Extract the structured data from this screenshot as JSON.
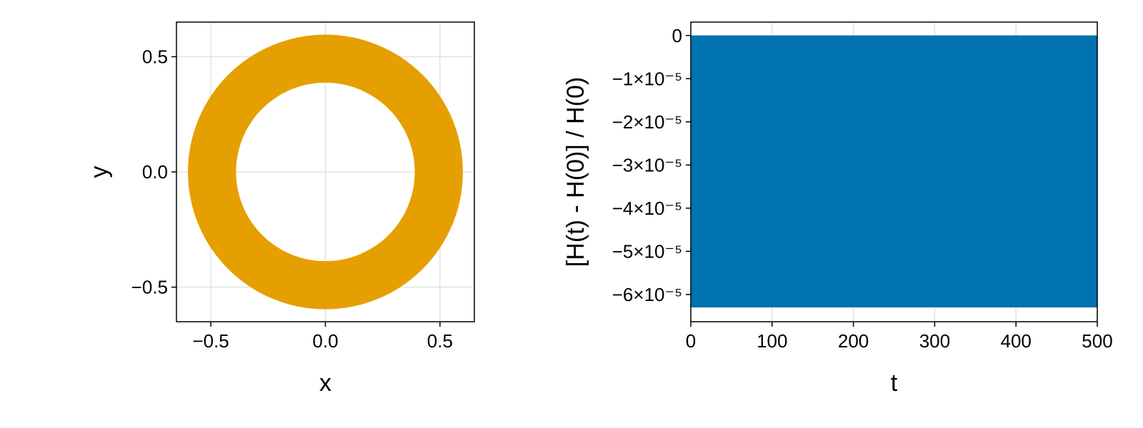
{
  "chart_data": [
    {
      "type": "annulus",
      "xlabel": "x",
      "ylabel": "y",
      "center": [
        0,
        0
      ],
      "inner_radius": 0.39,
      "outer_radius": 0.6,
      "color": "#e69f00",
      "xlim": [
        -0.65,
        0.65
      ],
      "ylim": [
        -0.65,
        0.65
      ],
      "xticks": [
        {
          "value": -0.5,
          "label": "−0.5"
        },
        {
          "value": 0,
          "label": "0.0"
        },
        0.5
      ],
      "yticks": [
        {
          "value": -0.5,
          "label": "−0.5"
        },
        {
          "value": 0,
          "label": "0.0"
        },
        0.5
      ],
      "grid": true
    },
    {
      "type": "band",
      "xlabel": "t",
      "ylabel": "[H(t) - H(0)] / H(0)",
      "x": [
        0,
        500
      ],
      "upper": [
        0,
        0
      ],
      "lower": [
        -6.3e-05,
        -6.3e-05
      ],
      "color": "#0072b2",
      "xlim": [
        0,
        500
      ],
      "ylim": [
        -6.63e-05,
        3.1e-06
      ],
      "xticks": [
        0,
        100,
        200,
        300,
        400,
        500
      ],
      "yticks": [
        0,
        {
          "value": -1e-05,
          "label": "−1×10⁻⁵"
        },
        {
          "value": -2e-05,
          "label": "−2×10⁻⁵"
        },
        {
          "value": -3e-05,
          "label": "−3×10⁻⁵"
        },
        {
          "value": -4e-05,
          "label": "−4×10⁻⁵"
        },
        {
          "value": -5e-05,
          "label": "−5×10⁻⁵"
        },
        {
          "value": -6e-05,
          "label": "−6×10⁻⁵"
        }
      ],
      "grid": true
    }
  ]
}
